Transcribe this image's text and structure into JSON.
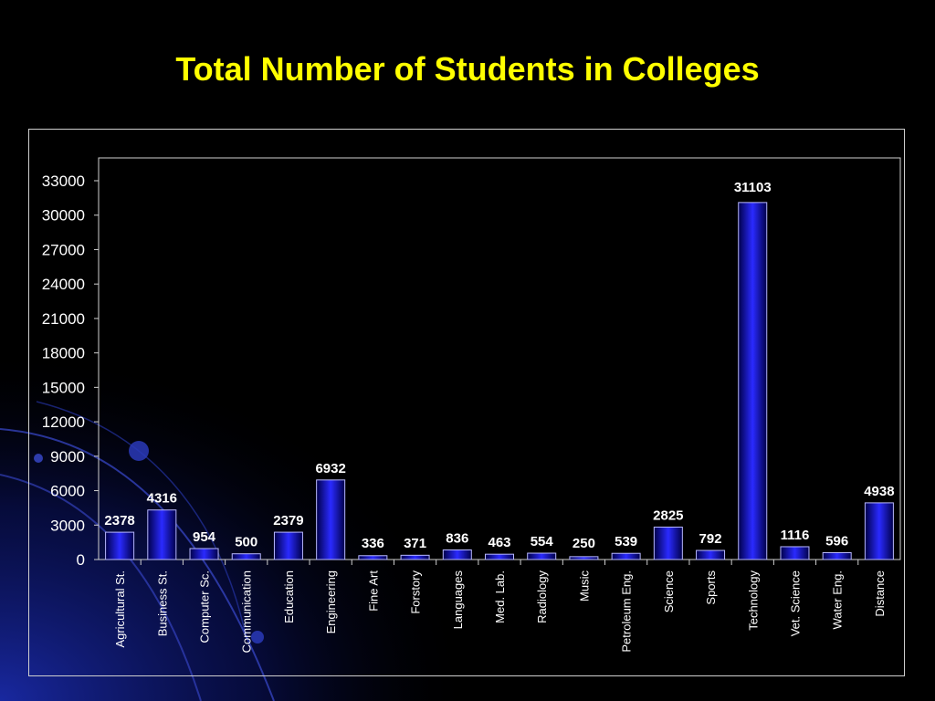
{
  "slide": {
    "title": "Total Number of Students in Colleges"
  },
  "colors": {
    "background": "#000000",
    "title": "#ffff00",
    "bar_dark": "#00004a",
    "bar_bright": "#2a2aff",
    "bar_border": "#b8b8ff",
    "text": "#ffffff",
    "frame": "#cfcfcf"
  },
  "chart_data": {
    "type": "bar",
    "title": "",
    "xlabel": "",
    "ylabel": "",
    "ylim": [
      0,
      33000
    ],
    "yticks": [
      0,
      3000,
      6000,
      9000,
      12000,
      15000,
      18000,
      21000,
      24000,
      27000,
      30000,
      33000
    ],
    "grid": false,
    "legend": "none",
    "categories": [
      "Agricultural St.",
      "Business St.",
      "Computer Sc.",
      "Communication",
      "Education",
      "Engineering",
      "Fine Art",
      "Forstory",
      "Languages",
      "Med. Lab.",
      "Radiology",
      "Music",
      "Petroleum Eng.",
      "Science",
      "Sports",
      "Technology",
      "Vet. Science",
      "Water Eng.",
      "Distance"
    ],
    "values": [
      2378,
      4316,
      954,
      500,
      2379,
      6932,
      336,
      371,
      836,
      463,
      554,
      250,
      539,
      2825,
      792,
      31103,
      1116,
      596,
      4938
    ]
  }
}
